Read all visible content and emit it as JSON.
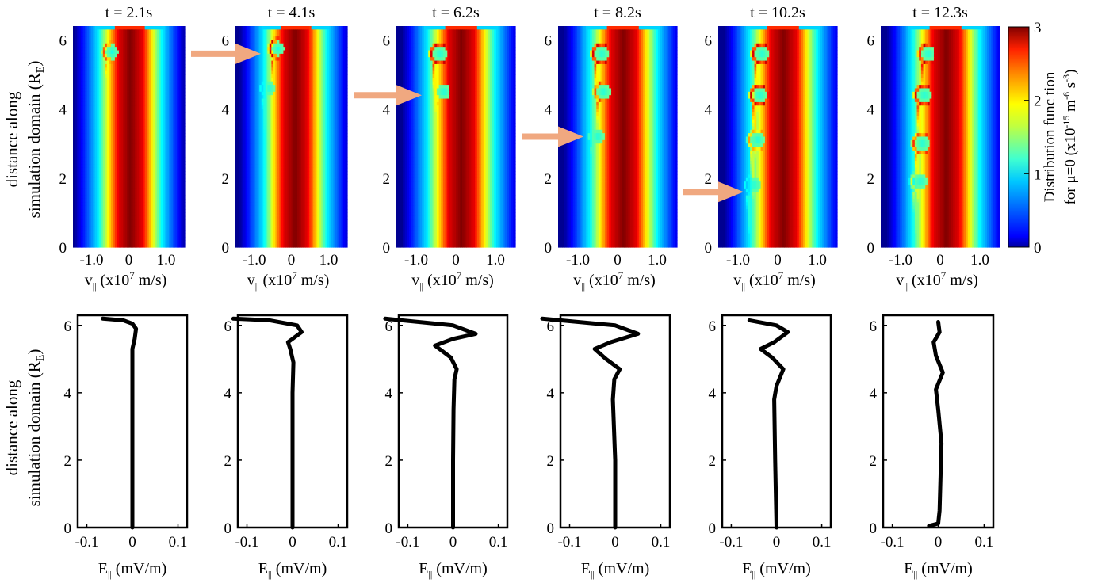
{
  "chart_data": [
    {
      "type": "heatmap",
      "row": "top",
      "panel_titles": [
        "t = 2.1s",
        "t = 4.1s",
        "t = 6.2s",
        "t = 8.2s",
        "t = 10.2s",
        "t = 12.3s"
      ],
      "ylabel_line1": "distance along",
      "ylabel_line2": "simulation domain (R",
      "ylabel_sub": "E",
      "ylabel_close": ")",
      "xlabel_v": "v",
      "xlabel_sub": "||",
      "xlabel_rest": "  (x10",
      "xlabel_sup": "7",
      "xlabel_unit": " m/s)",
      "xlim": [
        -1.5,
        1.5
      ],
      "ylim": [
        0,
        6.4
      ],
      "x_ticks": [
        -1.0,
        0,
        1.0
      ],
      "x_tick_labels": [
        "-1.0",
        "0",
        "1.0"
      ],
      "y_ticks": [
        0,
        2,
        4,
        6
      ],
      "y_tick_labels": [
        "0",
        "2",
        "4",
        "6"
      ],
      "colorbar": {
        "range": [
          0,
          3
        ],
        "ticks": [
          0,
          1,
          2,
          3
        ],
        "tick_labels": [
          "0",
          "1",
          "2",
          "3"
        ],
        "colormap": "jet",
        "label_line1": "Distribution func tion",
        "label_line2_pre": "for μ=0 (x10",
        "label_line2_sup1": "-15",
        "label_line2_mid": " m",
        "label_line2_sup2": "-6",
        "label_line2_mid2": " s",
        "label_line2_sup3": "-3",
        "label_line2_post": ")"
      },
      "beam": {
        "center": [
          0.04,
          0.11,
          0.14,
          0.15,
          0.15,
          0.15
        ],
        "hot_halfwidth": 0.32,
        "edge_halfwidth": 0.85
      },
      "holes": [
        [
          {
            "v": -0.45,
            "s": 5.65,
            "amp": 2.5
          }
        ],
        [
          {
            "v": -0.35,
            "s": 5.75,
            "amp": 2.8
          },
          {
            "v": -0.6,
            "s": 4.6,
            "amp": 1.2
          }
        ],
        [
          {
            "v": -0.4,
            "s": 5.6,
            "amp": 2.8
          },
          {
            "v": -0.3,
            "s": 4.5,
            "amp": 2.0
          }
        ],
        [
          {
            "v": -0.4,
            "s": 5.6,
            "amp": 2.8
          },
          {
            "v": -0.35,
            "s": 4.5,
            "amp": 2.5
          },
          {
            "v": -0.5,
            "s": 3.2,
            "amp": 1.3
          }
        ],
        [
          {
            "v": -0.4,
            "s": 5.6,
            "amp": 2.8
          },
          {
            "v": -0.45,
            "s": 4.4,
            "amp": 2.8
          },
          {
            "v": -0.5,
            "s": 3.1,
            "amp": 2.2
          },
          {
            "v": -0.6,
            "s": 1.8,
            "amp": 1.2
          }
        ],
        [
          {
            "v": -0.3,
            "s": 5.6,
            "amp": 2.8
          },
          {
            "v": -0.4,
            "s": 4.4,
            "amp": 2.8
          },
          {
            "v": -0.45,
            "s": 3.0,
            "amp": 2.5
          },
          {
            "v": -0.5,
            "s": 1.9,
            "amp": 1.8
          }
        ]
      ],
      "arrows": [
        {
          "from_panel": 0,
          "to_panel": 1,
          "y": 5.6
        },
        {
          "from_panel": 1,
          "to_panel": 2,
          "y": 4.4
        },
        {
          "from_panel": 2,
          "to_panel": 3,
          "y": 3.2
        },
        {
          "from_panel": 3,
          "to_panel": 4,
          "y": 1.6
        }
      ]
    },
    {
      "type": "line",
      "row": "bottom",
      "ylabel_line1": "distance along",
      "ylabel_line2": "simulation domain (R",
      "ylabel_sub": "E",
      "ylabel_close": ")",
      "xlabel_e": "E",
      "xlabel_sub": "||",
      "xlabel_unit": " (mV/m)",
      "xlim": [
        -0.12,
        0.12
      ],
      "ylim": [
        0,
        6.3
      ],
      "x_ticks": [
        -0.1,
        0,
        0.1
      ],
      "x_tick_labels": [
        "-0.1",
        "0",
        "0.1"
      ],
      "y_ticks": [
        0,
        2,
        4,
        6
      ],
      "y_tick_labels": [
        "0",
        "2",
        "4",
        "6"
      ],
      "series": [
        {
          "s": [
            0,
            2,
            4,
            5.3,
            5.6,
            5.9,
            6.05,
            6.15,
            6.2
          ],
          "e": [
            0.0,
            0.0,
            0.0,
            0.0,
            0.005,
            0.008,
            0.0,
            -0.02,
            -0.065
          ]
        },
        {
          "s": [
            0,
            2,
            4,
            4.9,
            5.3,
            5.5,
            5.8,
            6.0,
            6.15,
            6.2
          ],
          "e": [
            0.0,
            0.0,
            0.0,
            0.002,
            -0.005,
            -0.01,
            0.02,
            0.01,
            -0.05,
            -0.13
          ]
        },
        {
          "s": [
            0,
            2,
            3.5,
            4.4,
            4.7,
            5.05,
            5.4,
            5.6,
            5.75,
            6.0,
            6.2
          ],
          "e": [
            0.0,
            0.0,
            0.001,
            0.003,
            0.008,
            -0.005,
            -0.04,
            0.0,
            0.05,
            0.0,
            -0.15
          ]
        },
        {
          "s": [
            0,
            2,
            3.8,
            4.4,
            4.7,
            5.0,
            5.3,
            5.5,
            5.75,
            6.0,
            6.2
          ],
          "e": [
            0.0,
            0.0,
            -0.005,
            -0.002,
            0.01,
            -0.02,
            -0.045,
            -0.01,
            0.05,
            0.0,
            -0.16
          ]
        },
        {
          "s": [
            0,
            2,
            3.8,
            4.2,
            4.7,
            5.05,
            5.3,
            5.5,
            5.8,
            6.0,
            6.15
          ],
          "e": [
            0.0,
            -0.003,
            -0.005,
            0.0,
            0.015,
            -0.01,
            -0.035,
            -0.005,
            0.025,
            0.0,
            -0.06
          ]
        },
        {
          "s": [
            0.05,
            0.12,
            0.5,
            1.5,
            2.5,
            3.5,
            4.1,
            4.6,
            5.1,
            5.5,
            5.8,
            6.1
          ],
          "e": [
            -0.02,
            0.0,
            0.003,
            0.005,
            0.007,
            0.0,
            -0.005,
            0.01,
            -0.005,
            -0.01,
            0.003,
            0.0
          ]
        }
      ]
    }
  ]
}
